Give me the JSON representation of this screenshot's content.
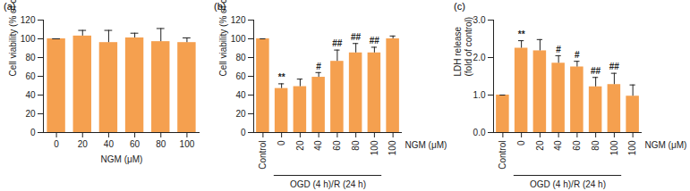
{
  "chart_data": [
    {
      "type": "bar",
      "panel": "(a)",
      "color": "#f5a04f",
      "y_label": [
        "Cell viability (% of control)"
      ],
      "x_label": "NGM (μM)",
      "categories": [
        "0",
        "20",
        "40",
        "60",
        "80",
        "100"
      ],
      "values": [
        100,
        103,
        96,
        101,
        97,
        96
      ],
      "errors": [
        0,
        6,
        13,
        5,
        14,
        5
      ],
      "ylim": [
        0,
        120
      ],
      "yticks": [
        0,
        20,
        40,
        60,
        80,
        100,
        120
      ]
    },
    {
      "type": "bar",
      "panel": "(b)",
      "color": "#f5a04f",
      "y_label": [
        "Cell viability (% of control)"
      ],
      "x_label": "NGM (μM)",
      "categories": [
        "Control",
        "0",
        "20",
        "40",
        "60",
        "80",
        "100",
        "100"
      ],
      "values": [
        100,
        47,
        49,
        59,
        76,
        85,
        85,
        100
      ],
      "errors": [
        0,
        5,
        8,
        5,
        12,
        10,
        6,
        3
      ],
      "annotations": [
        null,
        "**",
        null,
        "#",
        "##",
        "##",
        "##",
        null
      ],
      "group": {
        "label": "OGD (4 h)/R (24 h)",
        "start": 1,
        "end": 6
      },
      "ylim": [
        0,
        120
      ],
      "yticks": [
        0,
        20,
        40,
        60,
        80,
        100,
        120
      ]
    },
    {
      "type": "bar",
      "panel": "(c)",
      "color": "#f5a04f",
      "y_label": [
        "LDH release",
        "(fold of control)"
      ],
      "x_label": "NGM (μM)",
      "categories": [
        "Control",
        "0",
        "20",
        "40",
        "60",
        "80",
        "100",
        "100"
      ],
      "values": [
        1,
        2.25,
        2.18,
        1.85,
        1.75,
        1.22,
        1.28,
        0.97
      ],
      "errors": [
        0,
        0.2,
        0.3,
        0.2,
        0.15,
        0.25,
        0.3,
        0.3
      ],
      "annotations": [
        null,
        "**",
        null,
        "#",
        "#",
        "##",
        "##",
        null
      ],
      "group": {
        "label": "OGD (4 h)/R (24 h)",
        "start": 1,
        "end": 6
      },
      "ylim": [
        0,
        3
      ],
      "yticks": [
        0,
        1,
        2,
        3
      ]
    }
  ]
}
